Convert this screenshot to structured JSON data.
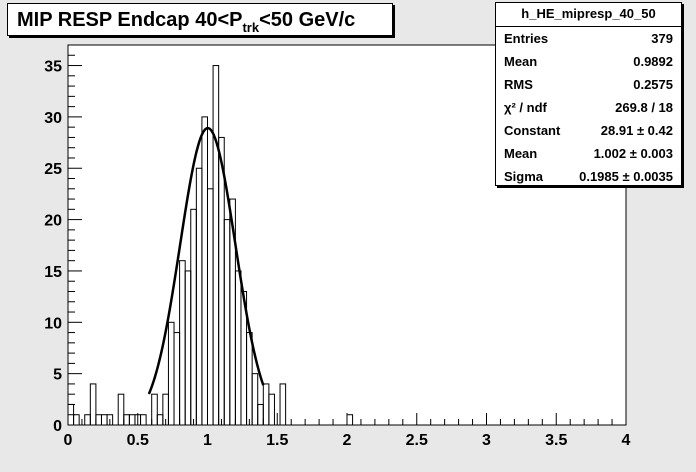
{
  "title": {
    "prefix": "MIP RESP Endcap 40<P",
    "sub": "trk",
    "suffix": "<50 GeV/c"
  },
  "stats": {
    "name": "h_HE_mipresp_40_50",
    "rows": [
      {
        "key": "Entries",
        "value": "379"
      },
      {
        "key": "Mean",
        "value": "0.9892"
      },
      {
        "key": "RMS",
        "value": "0.2575"
      },
      {
        "key": "χ² / ndf",
        "value": "269.8 / 18"
      },
      {
        "key": "Constant",
        "value": "28.91 ± 0.42"
      },
      {
        "key": "Mean",
        "value": "1.002 ± 0.003"
      },
      {
        "key": "Sigma",
        "value": "0.1985 ± 0.0035"
      }
    ]
  },
  "colors": {
    "background": "#e8e8e8",
    "plot_area": "#ffffff",
    "histogram": "#000000",
    "fit": "#000000"
  },
  "chart_data": {
    "type": "histogram",
    "title": "MIP RESP Endcap 40<P_trk<50 GeV/c",
    "xlabel": "",
    "ylabel": "",
    "xlim": [
      0,
      4
    ],
    "ylim": [
      0,
      37
    ],
    "xticks": [
      "0",
      "0.5",
      "1",
      "1.5",
      "2",
      "2.5",
      "3",
      "3.5",
      "4"
    ],
    "yticks": [
      "0",
      "5",
      "10",
      "15",
      "20",
      "25",
      "30",
      "35"
    ],
    "bin_width": 0.04,
    "bins": [
      {
        "x": 0.0,
        "y": 2
      },
      {
        "x": 0.04,
        "y": 1
      },
      {
        "x": 0.08,
        "y": 0
      },
      {
        "x": 0.12,
        "y": 1
      },
      {
        "x": 0.16,
        "y": 4
      },
      {
        "x": 0.2,
        "y": 1
      },
      {
        "x": 0.24,
        "y": 1
      },
      {
        "x": 0.28,
        "y": 1
      },
      {
        "x": 0.32,
        "y": 0
      },
      {
        "x": 0.36,
        "y": 3
      },
      {
        "x": 0.4,
        "y": 1
      },
      {
        "x": 0.44,
        "y": 1
      },
      {
        "x": 0.48,
        "y": 1
      },
      {
        "x": 0.52,
        "y": 1
      },
      {
        "x": 0.56,
        "y": 0
      },
      {
        "x": 0.6,
        "y": 3
      },
      {
        "x": 0.64,
        "y": 1
      },
      {
        "x": 0.68,
        "y": 3
      },
      {
        "x": 0.72,
        "y": 10
      },
      {
        "x": 0.76,
        "y": 9
      },
      {
        "x": 0.8,
        "y": 16
      },
      {
        "x": 0.84,
        "y": 15
      },
      {
        "x": 0.88,
        "y": 21
      },
      {
        "x": 0.92,
        "y": 25
      },
      {
        "x": 0.96,
        "y": 30
      },
      {
        "x": 1.0,
        "y": 23
      },
      {
        "x": 1.04,
        "y": 35
      },
      {
        "x": 1.08,
        "y": 28
      },
      {
        "x": 1.12,
        "y": 20
      },
      {
        "x": 1.16,
        "y": 22
      },
      {
        "x": 1.2,
        "y": 15
      },
      {
        "x": 1.24,
        "y": 13
      },
      {
        "x": 1.28,
        "y": 9
      },
      {
        "x": 1.32,
        "y": 5
      },
      {
        "x": 1.36,
        "y": 2
      },
      {
        "x": 1.4,
        "y": 4
      },
      {
        "x": 1.44,
        "y": 3
      },
      {
        "x": 1.48,
        "y": 0
      },
      {
        "x": 1.52,
        "y": 4
      },
      {
        "x": 1.56,
        "y": 0
      },
      {
        "x": 2.0,
        "y": 1
      }
    ],
    "fit": {
      "function": "gaus",
      "constant": 28.91,
      "mean": 1.002,
      "sigma": 0.1985,
      "range": [
        0.58,
        1.4
      ]
    }
  }
}
